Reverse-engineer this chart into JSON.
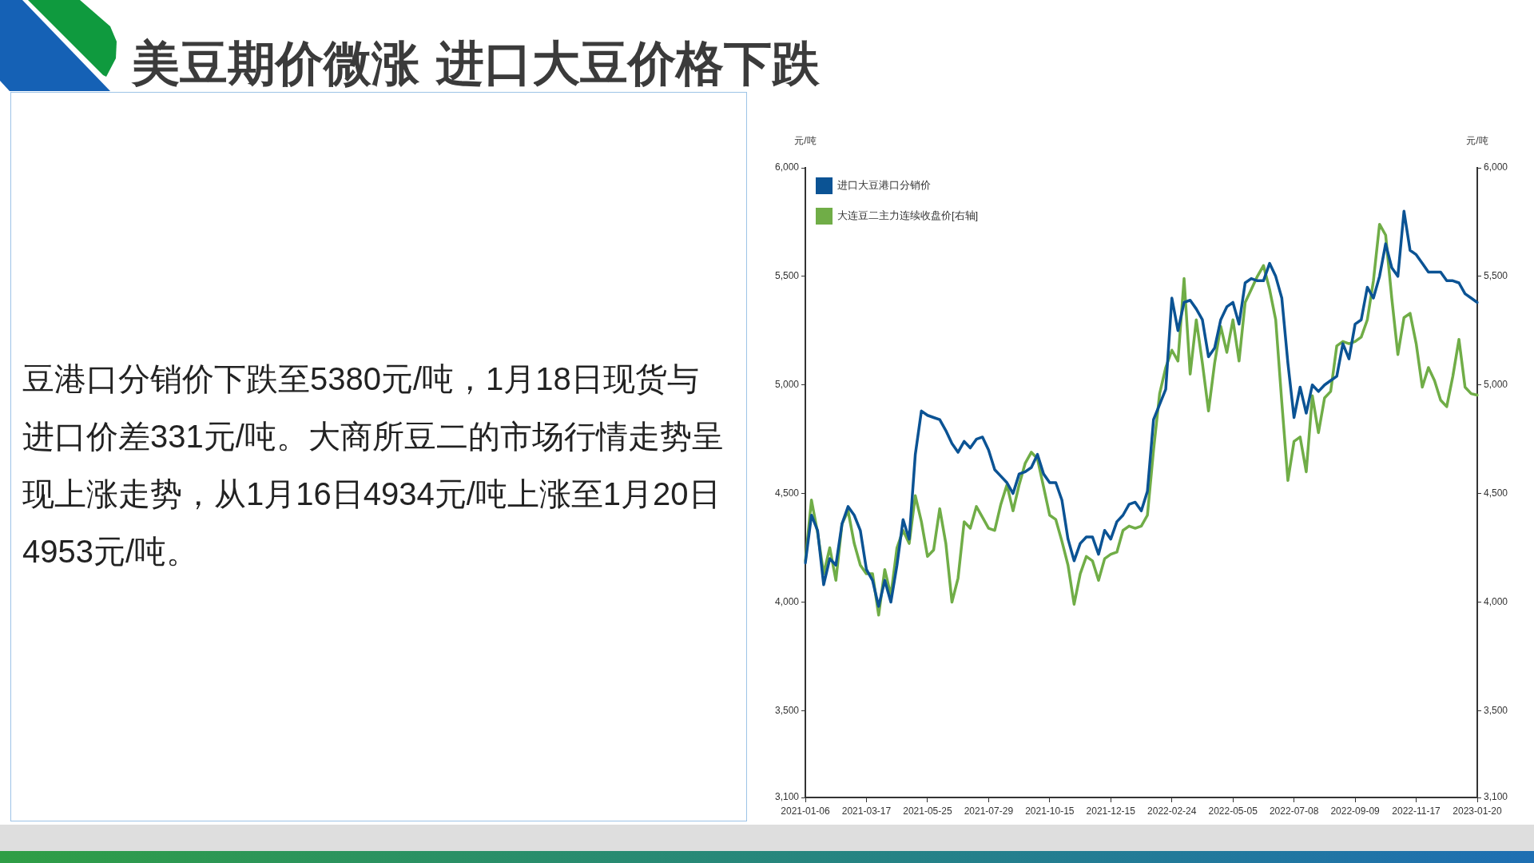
{
  "chart_data": {
    "type": "line",
    "title": "美豆期价微涨 进口大豆价格下跌",
    "ylabel": "元/吨",
    "y2label": "元/吨",
    "categories": [
      "2021-01-06",
      null,
      null,
      null,
      null,
      null,
      null,
      null,
      null,
      null,
      "2021-03-17",
      null,
      null,
      null,
      null,
      null,
      null,
      null,
      null,
      null,
      "2021-05-25",
      null,
      null,
      null,
      null,
      null,
      null,
      null,
      null,
      null,
      "2021-07-29",
      null,
      null,
      null,
      null,
      null,
      null,
      null,
      null,
      null,
      "2021-10-15",
      null,
      null,
      null,
      null,
      null,
      null,
      null,
      null,
      null,
      "2021-12-15",
      null,
      null,
      null,
      null,
      null,
      null,
      null,
      null,
      null,
      "2022-02-24",
      null,
      null,
      null,
      null,
      null,
      null,
      null,
      null,
      null,
      "2022-05-05",
      null,
      null,
      null,
      null,
      null,
      null,
      null,
      null,
      null,
      "2022-07-08",
      null,
      null,
      null,
      null,
      null,
      null,
      null,
      null,
      null,
      "2022-09-09",
      null,
      null,
      null,
      null,
      null,
      null,
      null,
      null,
      null,
      "2022-11-17",
      null,
      null,
      null,
      null,
      null,
      null,
      null,
      null,
      null,
      "2023-01-20"
    ],
    "series": [
      {
        "name": "进口大豆港口分销价",
        "color": "#0b5394",
        "values": [
          4180,
          4400,
          4330,
          4080,
          4200,
          4170,
          4360,
          4440,
          4400,
          4330,
          4150,
          4100,
          3980,
          4100,
          4000,
          4170,
          4380,
          4290,
          4680,
          4880,
          4860,
          4850,
          4840,
          4790,
          4730,
          4690,
          4740,
          4710,
          4750,
          4760,
          4700,
          4610,
          4580,
          4550,
          4500,
          4590,
          4600,
          4620,
          4680,
          4590,
          4550,
          4550,
          4470,
          4290,
          4190,
          4270,
          4300,
          4300,
          4220,
          4330,
          4290,
          4370,
          4400,
          4450,
          4460,
          4420,
          4510,
          4840,
          4910,
          4980,
          5400,
          5250,
          5380,
          5390,
          5350,
          5300,
          5130,
          5170,
          5300,
          5360,
          5380,
          5280,
          5470,
          5490,
          5480,
          5480,
          5560,
          5500,
          5400,
          5100,
          4850,
          4990,
          4870,
          5000,
          4970,
          5000,
          5020,
          5040,
          5190,
          5120,
          5280,
          5300,
          5450,
          5400,
          5500,
          5650,
          5540,
          5500,
          5800,
          5620,
          5600,
          5560,
          5520,
          5520,
          5520,
          5480,
          5480,
          5470,
          5420,
          5400,
          5380
        ]
      },
      {
        "name": "大连豆二主力连续收盘价[右轴]",
        "color": "#70ad47",
        "axis": "y2",
        "values": [
          4190,
          4470,
          4320,
          4130,
          4250,
          4100,
          4360,
          4420,
          4270,
          4170,
          4130,
          4130,
          3940,
          4150,
          4030,
          4250,
          4330,
          4270,
          4490,
          4370,
          4210,
          4240,
          4430,
          4270,
          4000,
          4110,
          4370,
          4340,
          4440,
          4390,
          4340,
          4330,
          4450,
          4540,
          4420,
          4540,
          4640,
          4690,
          4660,
          4530,
          4400,
          4380,
          4280,
          4170,
          3990,
          4130,
          4210,
          4190,
          4100,
          4200,
          4220,
          4230,
          4330,
          4350,
          4340,
          4350,
          4400,
          4700,
          4960,
          5080,
          5160,
          5110,
          5490,
          5050,
          5300,
          5100,
          4880,
          5100,
          5270,
          5150,
          5300,
          5110,
          5380,
          5440,
          5500,
          5550,
          5440,
          5300,
          4920,
          4560,
          4740,
          4760,
          4600,
          4950,
          4780,
          4940,
          4970,
          5180,
          5200,
          5190,
          5200,
          5220,
          5300,
          5480,
          5740,
          5690,
          5400,
          5140,
          5310,
          5330,
          5190,
          4990,
          5080,
          5020,
          4930,
          4900,
          5040,
          5210,
          4990,
          4960,
          4953
        ]
      }
    ],
    "ylim": [
      3100,
      6000
    ],
    "yticks": [
      {
        "value": 3100,
        "label": "3,100"
      },
      {
        "value": 3500,
        "label": "3,500"
      },
      {
        "value": 4000,
        "label": "4,000"
      },
      {
        "value": 4500,
        "label": "4,500"
      },
      {
        "value": 5000,
        "label": "5,000"
      },
      {
        "value": 5500,
        "label": "5,500"
      },
      {
        "value": 6000,
        "label": "6,000"
      }
    ],
    "y2lim": [
      3100,
      6000
    ],
    "y2ticks": [
      {
        "value": 3100,
        "label": "3,100"
      },
      {
        "value": 3500,
        "label": "3,500"
      },
      {
        "value": 4000,
        "label": "4,000"
      },
      {
        "value": 4500,
        "label": "4,500"
      },
      {
        "value": 5000,
        "label": "5,000"
      },
      {
        "value": 5500,
        "label": "5,500"
      },
      {
        "value": 6000,
        "label": "6,000"
      }
    ],
    "legend": "top left",
    "marker": "none",
    "annotations": [
      "豆港口分销价下跌至5380元/吨，1月18日现货与进口价差331元/吨。大商所豆二的市场行情走势呈现上涨走势，从1月16日4934元/吨上涨至1月20日4953元/吨。"
    ]
  }
}
